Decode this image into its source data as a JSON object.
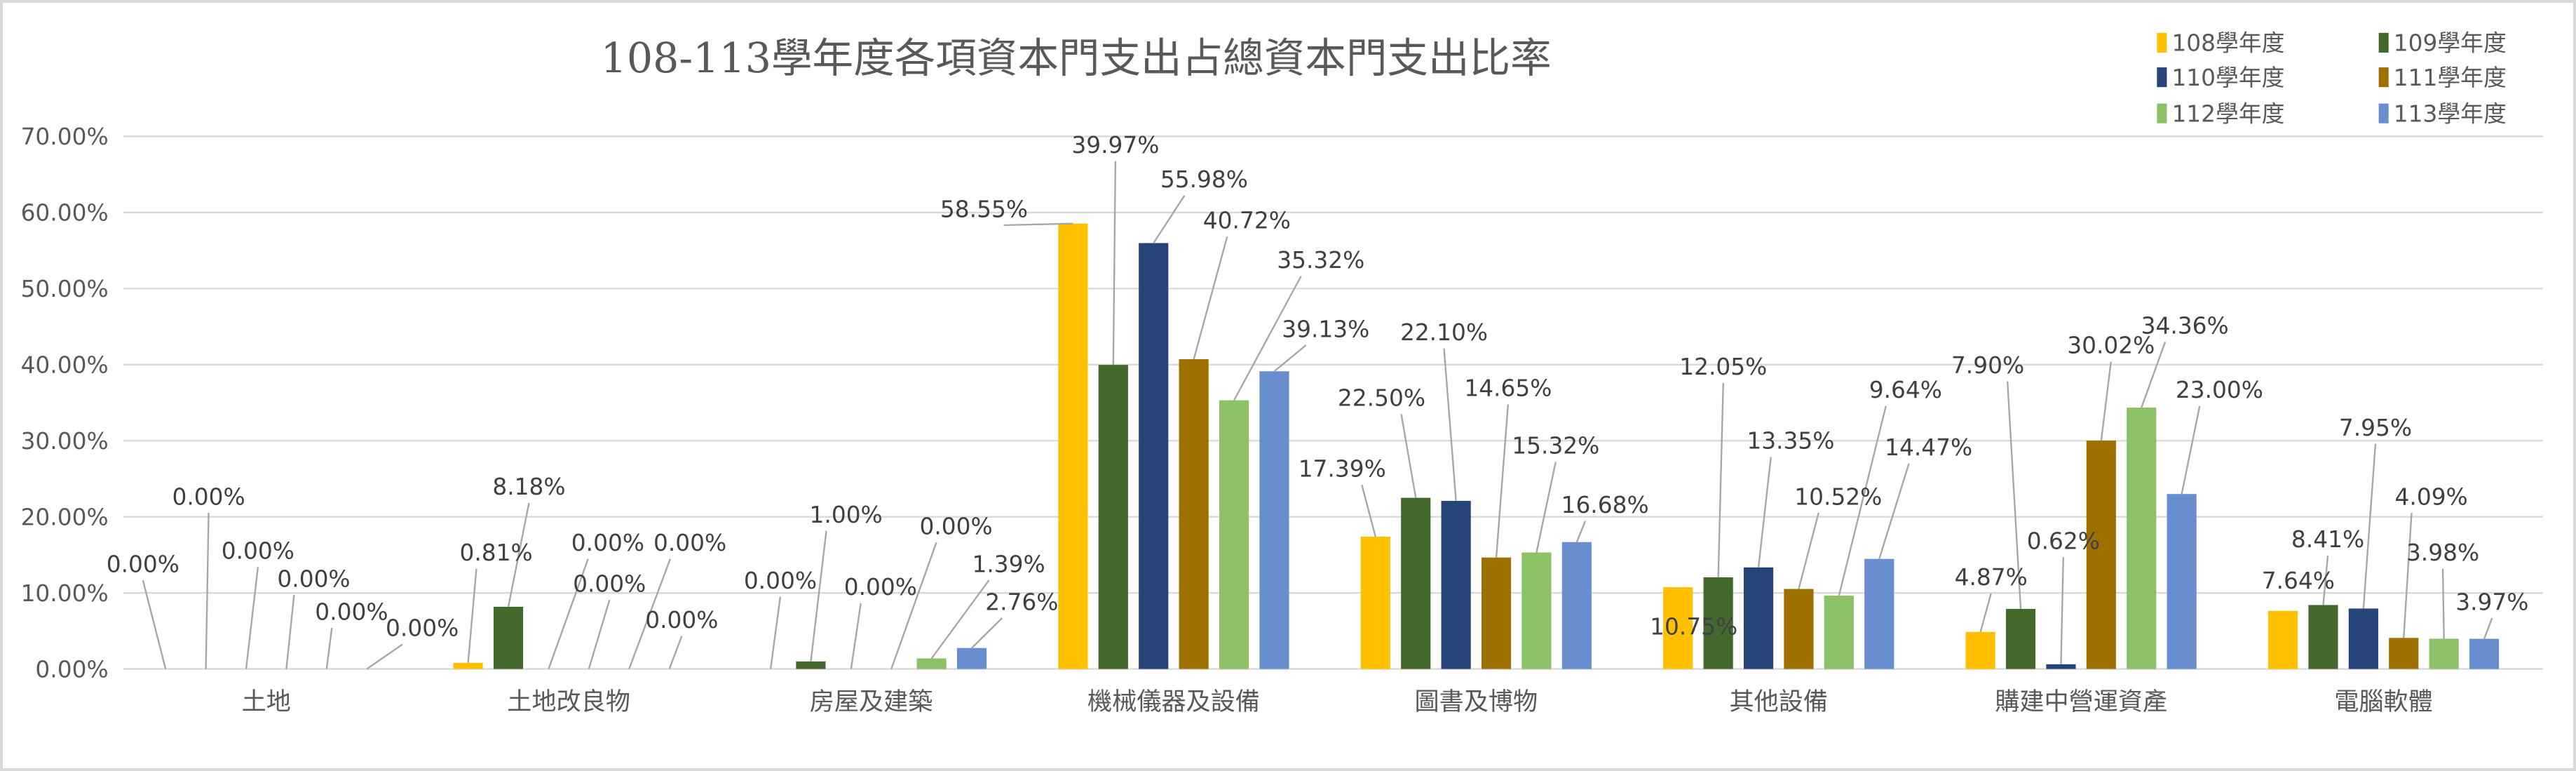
{
  "chart_data": {
    "type": "bar",
    "title": "108-113學年度各項資本門支出占總資本門支出比率",
    "xlabel": "",
    "ylabel": "",
    "ylim": [
      0,
      70
    ],
    "yticks": [
      "0.00%",
      "10.00%",
      "20.00%",
      "30.00%",
      "40.00%",
      "50.00%",
      "60.00%",
      "70.00%"
    ],
    "grid": true,
    "legend_position": "top-right",
    "categories": [
      "土地",
      "土地改良物",
      "房屋及建築",
      "機械儀器及設備",
      "圖書及博物",
      "其他設備",
      "購建中營運資產",
      "電腦軟體"
    ],
    "series": [
      {
        "name": "108學年度",
        "color": "#FFC000",
        "values": [
          0.0,
          0.81,
          0.0,
          58.55,
          17.39,
          10.75,
          4.87,
          7.64
        ]
      },
      {
        "name": "109學年度",
        "color": "#43682B",
        "values": [
          0.0,
          8.18,
          1.0,
          39.97,
          22.5,
          12.05,
          7.9,
          8.41
        ]
      },
      {
        "name": "110學年度",
        "color": "#264478",
        "values": [
          0.0,
          0.0,
          0.0,
          55.98,
          22.1,
          13.35,
          0.62,
          7.95
        ]
      },
      {
        "name": "111學年度",
        "color": "#9E7000",
        "values": [
          0.0,
          0.0,
          0.0,
          40.72,
          14.65,
          10.52,
          30.02,
          4.09
        ]
      },
      {
        "name": "112學年度",
        "color": "#8CC168",
        "values": [
          0.0,
          0.0,
          1.39,
          35.32,
          15.32,
          9.64,
          34.36,
          3.98
        ]
      },
      {
        "name": "113學年度",
        "color": "#698ED0",
        "values": [
          0.0,
          0.0,
          2.76,
          39.13,
          16.68,
          14.47,
          23.0,
          3.97
        ]
      }
    ]
  }
}
